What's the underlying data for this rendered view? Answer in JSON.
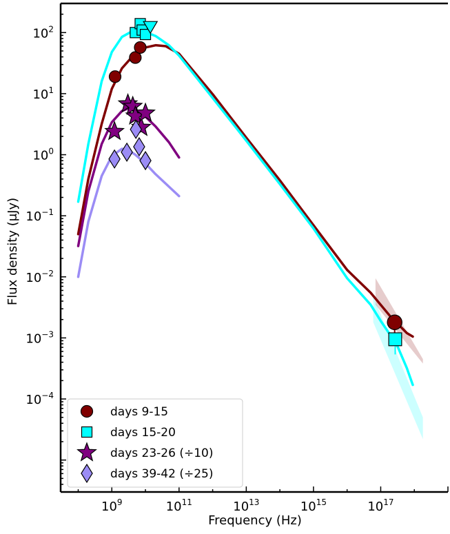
{
  "chart_data": {
    "type": "scatter",
    "title": "",
    "xlabel": "Frequency (Hz)",
    "ylabel": "Flux density (μJy)",
    "xscale": "log",
    "yscale": "log",
    "xlim": [
      30000000.0,
      1e+19
    ],
    "ylim": [
      3e-06,
      300
    ],
    "grid": false,
    "legend_position": "bottom-left",
    "x_ticks": [
      {
        "exp": 9,
        "value": 1000000000.0
      },
      {
        "exp": 11,
        "value": 100000000000.0
      },
      {
        "exp": 13,
        "value": 10000000000000.0
      },
      {
        "exp": 15,
        "value": 1000000000000000.0
      },
      {
        "exp": 17,
        "value": 1e+17
      }
    ],
    "y_ticks": [
      {
        "exp": -4,
        "value": 0.0001
      },
      {
        "exp": -3,
        "value": 0.001
      },
      {
        "exp": -2,
        "value": 0.01
      },
      {
        "exp": -1,
        "value": 0.1
      },
      {
        "exp": 0,
        "value": 1
      },
      {
        "exp": 1,
        "value": 10
      },
      {
        "exp": 2,
        "value": 100
      }
    ],
    "series": [
      {
        "name": "days 9-15",
        "color": "#800000",
        "marker": "circle",
        "points": [
          {
            "x": 1250000000.0,
            "y": 19
          },
          {
            "x": 5000000000.0,
            "y": 39
          },
          {
            "x": 7000000000.0,
            "y": 57
          },
          {
            "x": 2.6e+17,
            "y": 0.0018
          }
        ],
        "model": [
          [
            100000000.0,
            0.05
          ],
          [
            200000000.0,
            0.4
          ],
          [
            500000000.0,
            3.2
          ],
          [
            1000000000.0,
            12
          ],
          [
            2000000000.0,
            26
          ],
          [
            4000000000.0,
            40
          ],
          [
            7000000000.0,
            50
          ],
          [
            10000000000.0,
            57
          ],
          [
            20000000000.0,
            62
          ],
          [
            40000000000.0,
            60
          ],
          [
            100000000000.0,
            45
          ],
          [
            1000000000000.0,
            9.8
          ],
          [
            10000000000000.0,
            1.9
          ],
          [
            100000000000000.0,
            0.38
          ],
          [
            1000000000000000.0,
            0.07
          ],
          [
            1e+16,
            0.013
          ],
          [
            5e+16,
            0.0055
          ],
          [
            2e+17,
            0.0022
          ],
          [
            6e+17,
            0.0012
          ],
          [
            9e+17,
            0.00105
          ]
        ],
        "band": {
          "x": [
            7e+16,
            1.8e+18
          ],
          "lower": [
            0.0035,
            0.00038
          ],
          "upper": [
            0.0095,
            0.00045
          ]
        }
      },
      {
        "name": "days 15-20",
        "color": "#00ffff",
        "marker": "square",
        "points": [
          {
            "x": 5000000000.0,
            "y": 100
          },
          {
            "x": 7000000000.0,
            "y": 140
          },
          {
            "x": 8000000000.0,
            "y": 110
          },
          {
            "x": 10000000000.0,
            "y": 93
          },
          {
            "x": 2.7e+17,
            "y": 0.00095
          }
        ],
        "upper_limits": [
          {
            "x": 14000000000.0,
            "y": 125
          }
        ],
        "model": [
          [
            100000000.0,
            0.17
          ],
          [
            200000000.0,
            1.5
          ],
          [
            500000000.0,
            16
          ],
          [
            1000000000.0,
            48
          ],
          [
            2000000000.0,
            85
          ],
          [
            4000000000.0,
            105
          ],
          [
            7000000000.0,
            108
          ],
          [
            10000000000.0,
            102
          ],
          [
            20000000000.0,
            88
          ],
          [
            50000000000.0,
            62
          ],
          [
            100000000000.0,
            42
          ],
          [
            1000000000000.0,
            8.5
          ],
          [
            10000000000000.0,
            1.7
          ],
          [
            100000000000000.0,
            0.33
          ],
          [
            1000000000000000.0,
            0.062
          ],
          [
            1e+16,
            0.0095
          ],
          [
            5e+16,
            0.0035
          ],
          [
            1e+17,
            0.0019
          ],
          [
            3e+17,
            0.00078
          ],
          [
            6e+17,
            0.00032
          ],
          [
            9e+17,
            0.00017
          ]
        ],
        "band": {
          "x": [
            6e+16,
            1.8e+18
          ],
          "lower": [
            0.0018,
            2.2e-05
          ],
          "upper": [
            0.0048,
            5e-05
          ]
        }
      },
      {
        "name": "days 23-26 (÷10)",
        "color": "#800080",
        "marker": "star",
        "points": [
          {
            "x": 1200000000.0,
            "y": 2.4
          },
          {
            "x": 3000000000.0,
            "y": 6.8
          },
          {
            "x": 4200000000.0,
            "y": 6.2
          },
          {
            "x": 5000000000.0,
            "y": 4.3
          },
          {
            "x": 7500000000.0,
            "y": 2.8
          },
          {
            "x": 10000000000.0,
            "y": 4.8
          }
        ],
        "model": [
          [
            100000000.0,
            0.032
          ],
          [
            200000000.0,
            0.25
          ],
          [
            500000000.0,
            1.5
          ],
          [
            1000000000.0,
            3.4
          ],
          [
            2000000000.0,
            5.2
          ],
          [
            3000000000.0,
            5.7
          ],
          [
            5000000000.0,
            5.4
          ],
          [
            10000000000.0,
            4.2
          ],
          [
            20000000000.0,
            2.9
          ],
          [
            50000000000.0,
            1.6
          ],
          [
            100000000000.0,
            0.9
          ]
        ]
      },
      {
        "name": "days 39-42 (÷25)",
        "color": "#9b8cf5",
        "marker": "diamond",
        "points": [
          {
            "x": 1200000000.0,
            "y": 0.85
          },
          {
            "x": 2800000000.0,
            "y": 1.1
          },
          {
            "x": 5200000000.0,
            "y": 2.6
          },
          {
            "x": 6500000000.0,
            "y": 1.35
          },
          {
            "x": 10000000000.0,
            "y": 0.8
          }
        ],
        "model": [
          [
            100000000.0,
            0.01
          ],
          [
            200000000.0,
            0.08
          ],
          [
            500000000.0,
            0.45
          ],
          [
            1000000000.0,
            0.95
          ],
          [
            2000000000.0,
            1.25
          ],
          [
            3000000000.0,
            1.2
          ],
          [
            5000000000.0,
            1.0
          ],
          [
            10000000000.0,
            0.72
          ],
          [
            20000000000.0,
            0.48
          ],
          [
            50000000000.0,
            0.3
          ],
          [
            100000000000.0,
            0.21
          ]
        ]
      }
    ]
  }
}
